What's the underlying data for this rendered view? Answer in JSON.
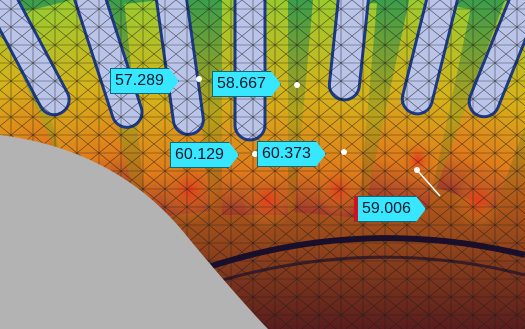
{
  "probes": [
    {
      "id": "probe-1",
      "value": "57.289"
    },
    {
      "id": "probe-2",
      "value": "58.667"
    },
    {
      "id": "probe-3",
      "value": "60.129"
    },
    {
      "id": "probe-4",
      "value": "60.373"
    },
    {
      "id": "probe-5",
      "value": "59.006"
    }
  ],
  "colors": {
    "callout_fill": "#37e6ff",
    "callout_border": "#0a6a7a",
    "marker_red": "#d10f1f",
    "mesh_line": "#1a1a1a",
    "overlay_gray": "#b3b3b3"
  }
}
